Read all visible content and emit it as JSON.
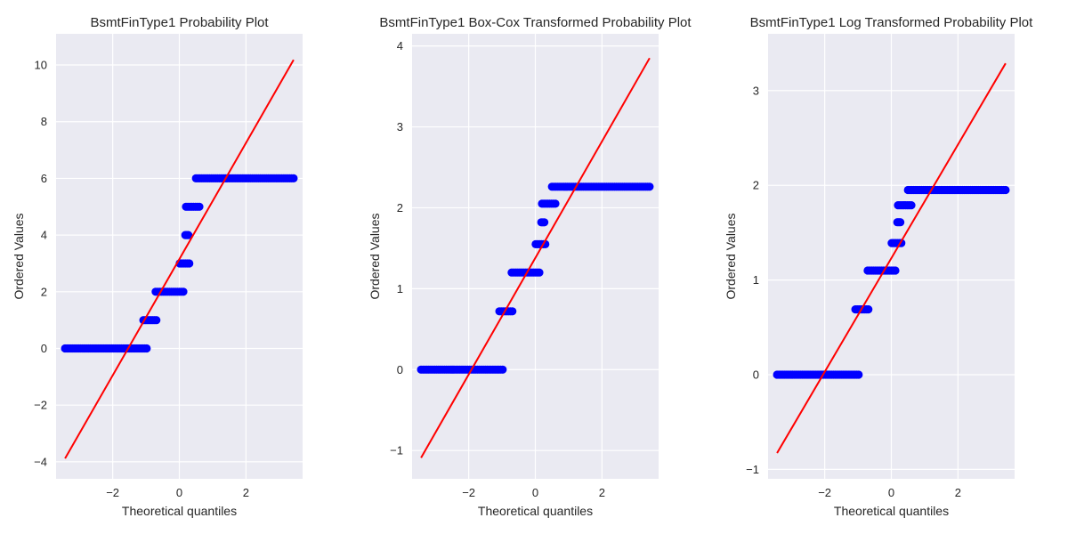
{
  "colors": {
    "plot_bg": "#eaeaf2",
    "grid": "#ffffff",
    "points": "#0000ff",
    "fit_line": "#ff0000"
  },
  "chart_data": [
    {
      "type": "scatter",
      "title": "BsmtFinType1 Probability Plot",
      "xlabel": "Theoretical quantiles",
      "ylabel": "Ordered Values",
      "xlim": [
        -3.7,
        3.7
      ],
      "ylim": [
        -4.6,
        11.1
      ],
      "xticks": [
        -2,
        0,
        2
      ],
      "yticks": [
        -4,
        -2,
        0,
        2,
        4,
        6,
        8,
        10
      ],
      "grid": true,
      "fit_line": {
        "slope": 2.05,
        "intercept": 3.15
      },
      "steps": [
        {
          "y": 0,
          "x_from": -3.43,
          "x_to": -0.98
        },
        {
          "y": 1,
          "x_from": -1.08,
          "x_to": -0.69
        },
        {
          "y": 2,
          "x_from": -0.71,
          "x_to": 0.12
        },
        {
          "y": 3,
          "x_from": 0.01,
          "x_to": 0.3
        },
        {
          "y": 4,
          "x_from": 0.18,
          "x_to": 0.27
        },
        {
          "y": 5,
          "x_from": 0.2,
          "x_to": 0.6
        },
        {
          "y": 6,
          "x_from": 0.5,
          "x_to": 3.43
        }
      ]
    },
    {
      "type": "scatter",
      "title": "BsmtFinType1 Box-Cox Transformed Probability Plot",
      "xlabel": "Theoretical quantiles",
      "ylabel": "Ordered Values",
      "xlim": [
        -3.7,
        3.7
      ],
      "ylim": [
        -1.35,
        4.15
      ],
      "xticks": [
        -2,
        0,
        2
      ],
      "yticks": [
        -1,
        0,
        1,
        2,
        3,
        4
      ],
      "grid": true,
      "fit_line": {
        "slope": 0.72,
        "intercept": 1.38
      },
      "steps": [
        {
          "y": 0,
          "x_from": -3.43,
          "x_to": -0.98
        },
        {
          "y": 0.72,
          "x_from": -1.08,
          "x_to": -0.69
        },
        {
          "y": 1.2,
          "x_from": -0.71,
          "x_to": 0.12
        },
        {
          "y": 1.55,
          "x_from": 0.01,
          "x_to": 0.3
        },
        {
          "y": 1.82,
          "x_from": 0.18,
          "x_to": 0.27
        },
        {
          "y": 2.05,
          "x_from": 0.2,
          "x_to": 0.6
        },
        {
          "y": 2.26,
          "x_from": 0.5,
          "x_to": 3.43
        }
      ]
    },
    {
      "type": "scatter",
      "title": "BsmtFinType1 Log Transformed Probability Plot",
      "xlabel": "Theoretical quantiles",
      "ylabel": "Ordered Values",
      "xlim": [
        -3.7,
        3.7
      ],
      "ylim": [
        -1.1,
        3.6
      ],
      "xticks": [
        -2,
        0,
        2
      ],
      "yticks": [
        -1,
        0,
        1,
        2,
        3
      ],
      "grid": true,
      "fit_line": {
        "slope": 0.6,
        "intercept": 1.23
      },
      "steps": [
        {
          "y": 0,
          "x_from": -3.43,
          "x_to": -0.98
        },
        {
          "y": 0.69,
          "x_from": -1.08,
          "x_to": -0.69
        },
        {
          "y": 1.1,
          "x_from": -0.71,
          "x_to": 0.12
        },
        {
          "y": 1.39,
          "x_from": 0.01,
          "x_to": 0.3
        },
        {
          "y": 1.61,
          "x_from": 0.18,
          "x_to": 0.27
        },
        {
          "y": 1.79,
          "x_from": 0.2,
          "x_to": 0.6
        },
        {
          "y": 1.95,
          "x_from": 0.5,
          "x_to": 3.43
        }
      ]
    }
  ]
}
